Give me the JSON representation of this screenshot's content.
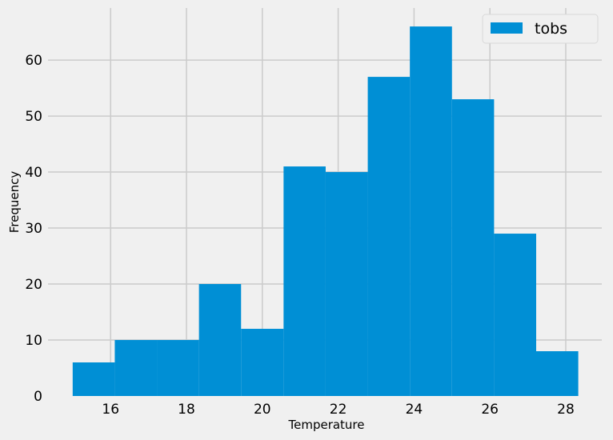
{
  "chart_data": {
    "type": "bar",
    "subtype": "histogram",
    "xlabel": "Temperature",
    "ylabel": "Frequency",
    "xlim": [
      14.35,
      28.95
    ],
    "ylim": [
      0,
      69.3
    ],
    "x_ticks": [
      16,
      18,
      20,
      22,
      24,
      26,
      28
    ],
    "y_ticks": [
      0,
      10,
      20,
      30,
      40,
      50,
      60
    ],
    "bin_edges": [
      15.0,
      16.11,
      17.22,
      18.33,
      19.44,
      20.56,
      21.67,
      22.78,
      23.89,
      25.0,
      26.11,
      27.22,
      28.33
    ],
    "series": [
      {
        "name": "tobs",
        "values": [
          6,
          10,
          10,
          20,
          12,
          41,
          40,
          57,
          66,
          53,
          29,
          8
        ]
      }
    ],
    "colors": {
      "bar": "#008fd5",
      "grid": "#cbcbcb",
      "background": "#f0f0f0"
    },
    "grid": true,
    "legend": "top-right"
  }
}
